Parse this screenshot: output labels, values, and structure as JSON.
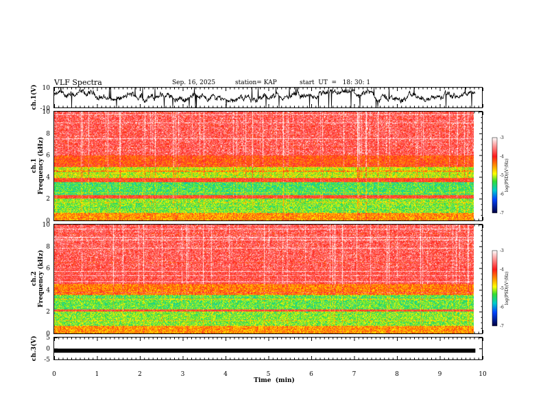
{
  "header": {
    "title": "VLF Spectra",
    "date": "Sep. 16, 2025",
    "station": "station= KAP",
    "start": "start  UT  =   18: 30: 1"
  },
  "chart_data": [
    {
      "type": "line",
      "panel": "ch1-waveform",
      "ylabel": "ch.1(V)",
      "ylim": [
        -10,
        10
      ],
      "y_ticks": [
        "10",
        "-10"
      ],
      "x_range_min": [
        0,
        9.83
      ],
      "color": "#000000",
      "description_of_trace": "dense noisy waveform, mostly within about -5 to 8 V, occasional spikes to +/-10 V"
    },
    {
      "type": "heatmap",
      "panel": "ch1-spectrogram",
      "ylabel": "ch.1 Frequency (kHz)",
      "ylim": [
        0,
        10
      ],
      "y_ticks": [
        "0",
        "2",
        "4",
        "6",
        "8",
        "10"
      ],
      "x_range_min": [
        0,
        9.83
      ],
      "colorbar": {
        "label": "log(PSD)(V²/Hz)",
        "range": [
          -7,
          -3
        ],
        "ticks": [
          "-3",
          "-4",
          "-5",
          "-6",
          "-7"
        ]
      },
      "bands_khz": [
        {
          "from": 0.0,
          "to": 0.7,
          "level": -4.5
        },
        {
          "from": 0.7,
          "to": 2.0,
          "level": -5.2
        },
        {
          "from": 2.0,
          "to": 2.3,
          "level": -4.0
        },
        {
          "from": 2.3,
          "to": 3.5,
          "level": -5.4
        },
        {
          "from": 3.5,
          "to": 3.9,
          "level": -4.1
        },
        {
          "from": 3.9,
          "to": 4.9,
          "level": -5.0
        },
        {
          "from": 4.9,
          "to": 6.0,
          "level": -4.2
        },
        {
          "from": 6.0,
          "to": 10.0,
          "level": -3.8
        }
      ]
    },
    {
      "type": "heatmap",
      "panel": "ch2-spectrogram",
      "ylabel": "ch.2 Frequency (kHz)",
      "ylim": [
        0,
        10
      ],
      "y_ticks": [
        "0",
        "2",
        "4",
        "6",
        "8",
        "10"
      ],
      "x_range_min": [
        0,
        9.83
      ],
      "colorbar": {
        "label": "log(PSD)(V²/Hz)",
        "range": [
          -7,
          -3
        ],
        "ticks": [
          "-3",
          "-4",
          "-5",
          "-6",
          "-7"
        ]
      },
      "bands_khz": [
        {
          "from": 0.0,
          "to": 0.7,
          "level": -4.5
        },
        {
          "from": 0.7,
          "to": 2.0,
          "level": -5.2
        },
        {
          "from": 2.0,
          "to": 2.2,
          "level": -4.0
        },
        {
          "from": 2.2,
          "to": 3.5,
          "level": -5.3
        },
        {
          "from": 3.5,
          "to": 4.5,
          "level": -4.4
        },
        {
          "from": 4.5,
          "to": 10.0,
          "level": -3.8
        }
      ]
    },
    {
      "type": "line",
      "panel": "ch3-waveform",
      "ylabel": "ch.3(V)",
      "ylim": [
        -5,
        5
      ],
      "y_ticks": [
        "5",
        "0",
        "-5"
      ],
      "x_range_min": [
        0,
        9.83
      ],
      "level_v": -1.0,
      "color": "#000000"
    }
  ],
  "xaxis": {
    "label": "Time  (min)",
    "ticks": [
      "0",
      "1",
      "2",
      "3",
      "4",
      "5",
      "6",
      "7",
      "8",
      "9",
      "10"
    ],
    "range": [
      0,
      10
    ]
  }
}
